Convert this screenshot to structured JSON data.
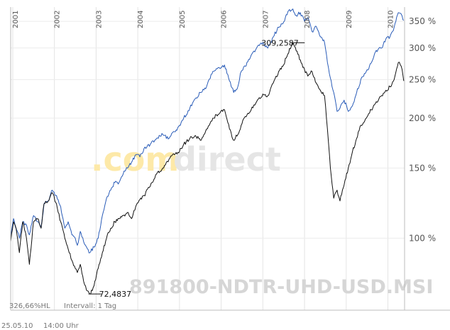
{
  "chart_data": {
    "type": "line",
    "title": "",
    "xlabel": "",
    "ylabel": "",
    "y_scale": "log",
    "y_unit": "%",
    "ylim": [
      66,
      380
    ],
    "x_ticks": [
      "2001",
      "2002",
      "2003",
      "2004",
      "2005",
      "2006",
      "2007",
      "2008",
      "2009",
      "2010"
    ],
    "y_ticks": [
      {
        "value": 100,
        "label": "100 %"
      },
      {
        "value": 150,
        "label": "150 %"
      },
      {
        "value": 200,
        "label": "200 %"
      },
      {
        "value": 250,
        "label": "250 %"
      },
      {
        "value": 300,
        "label": "300 %"
      },
      {
        "value": 350,
        "label": "350 %"
      }
    ],
    "grid": true,
    "watermark": {
      "part1": ".com",
      "part2": "direct"
    },
    "symbol": "891800-NDTR-UHD-USD.MSI",
    "annotations": [
      {
        "label": "309,2587",
        "x": 2007.85,
        "y": 309.2587
      },
      {
        "label": "72,4837",
        "x": 2002.97,
        "y": 72.4837
      }
    ],
    "footer": {
      "range": "326,66%HL",
      "interval": "Intervall: 1 Tag"
    },
    "bottom": {
      "date": "25.05.10",
      "time": "14:00 Uhr"
    },
    "series": [
      {
        "color": "#2a5cb8",
        "x": [
          2000.95,
          2001.02,
          2001.08,
          2001.16,
          2001.24,
          2001.33,
          2001.4,
          2001.5,
          2001.6,
          2001.68,
          2001.75,
          2001.85,
          2001.95,
          2002.05,
          2002.15,
          2002.25,
          2002.33,
          2002.42,
          2002.5,
          2002.55,
          2002.62,
          2002.7,
          2002.77,
          2002.85,
          2002.95,
          2003.05,
          2003.15,
          2003.25,
          2003.35,
          2003.45,
          2003.55,
          2003.65,
          2003.75,
          2003.85,
          2003.95,
          2004.05,
          2004.15,
          2004.3,
          2004.45,
          2004.6,
          2004.75,
          2004.88,
          2005.0,
          2005.1,
          2005.25,
          2005.4,
          2005.5,
          2005.65,
          2005.8,
          2005.95,
          2006.08,
          2006.2,
          2006.3,
          2006.4,
          2006.48,
          2006.58,
          2006.72,
          2006.85,
          2007.0,
          2007.12,
          2007.25,
          2007.38,
          2007.48,
          2007.6,
          2007.72,
          2007.8,
          2007.9,
          2008.0,
          2008.08,
          2008.18,
          2008.28,
          2008.38,
          2008.48,
          2008.55,
          2008.62,
          2008.7,
          2008.78,
          2008.85,
          2008.95,
          2009.05,
          2009.15,
          2009.25,
          2009.35,
          2009.48,
          2009.6,
          2009.72,
          2009.85,
          2009.95,
          2010.05,
          2010.15,
          2010.25,
          2010.32,
          2010.38
        ],
        "y": [
          100,
          112,
          106,
          100,
          110,
          108,
          102,
          114,
          110,
          106,
          122,
          124,
          132,
          128,
          120,
          106,
          110,
          102,
          100,
          96,
          104,
          98,
          95,
          92,
          95,
          100,
          114,
          126,
          132,
          138,
          138,
          145,
          150,
          155,
          162,
          160,
          168,
          172,
          178,
          182,
          178,
          185,
          192,
          200,
          212,
          225,
          232,
          240,
          262,
          268,
          272,
          248,
          232,
          240,
          262,
          270,
          288,
          300,
          310,
          300,
          320,
          338,
          345,
          370,
          376,
          362,
          368,
          350,
          358,
          330,
          340,
          320,
          310,
          276,
          252,
          232,
          208,
          212,
          222,
          208,
          215,
          232,
          250,
          262,
          275,
          296,
          300,
          316,
          320,
          338,
          368,
          365,
          352
        ]
      },
      {
        "color": "#111111",
        "x": [
          2000.95,
          2001.02,
          2001.08,
          2001.16,
          2001.24,
          2001.33,
          2001.4,
          2001.5,
          2001.6,
          2001.68,
          2001.75,
          2001.85,
          2001.95,
          2002.05,
          2002.15,
          2002.25,
          2002.33,
          2002.42,
          2002.5,
          2002.55,
          2002.62,
          2002.7,
          2002.77,
          2002.85,
          2002.95,
          2003.05,
          2003.15,
          2003.25,
          2003.35,
          2003.45,
          2003.55,
          2003.65,
          2003.75,
          2003.85,
          2003.95,
          2004.05,
          2004.15,
          2004.3,
          2004.45,
          2004.6,
          2004.75,
          2004.88,
          2005.0,
          2005.1,
          2005.25,
          2005.4,
          2005.5,
          2005.65,
          2005.8,
          2005.95,
          2006.08,
          2006.2,
          2006.3,
          2006.4,
          2006.48,
          2006.58,
          2006.72,
          2006.85,
          2007.0,
          2007.12,
          2007.25,
          2007.38,
          2007.48,
          2007.6,
          2007.72,
          2007.8,
          2007.9,
          2008.0,
          2008.08,
          2008.18,
          2008.28,
          2008.38,
          2008.48,
          2008.55,
          2008.62,
          2008.7,
          2008.78,
          2008.85,
          2008.95,
          2009.05,
          2009.15,
          2009.25,
          2009.35,
          2009.48,
          2009.6,
          2009.72,
          2009.85,
          2009.95,
          2010.05,
          2010.15,
          2010.25,
          2010.32,
          2010.38
        ],
        "y": [
          98,
          110,
          106,
          92,
          110,
          100,
          86,
          110,
          112,
          106,
          122,
          124,
          130,
          122,
          110,
          100,
          94,
          88,
          84,
          82,
          86,
          78,
          74,
          72.48,
          76,
          84,
          92,
          100,
          106,
          110,
          112,
          114,
          116,
          112,
          120,
          125,
          128,
          135,
          145,
          150,
          158,
          162,
          165,
          172,
          178,
          180,
          176,
          188,
          200,
          205,
          210,
          188,
          176,
          182,
          192,
          202,
          210,
          220,
          230,
          228,
          245,
          262,
          270,
          290,
          309.26,
          295,
          280,
          265,
          255,
          262,
          245,
          235,
          228,
          188,
          150,
          126,
          132,
          124,
          136,
          150,
          165,
          178,
          192,
          200,
          210,
          220,
          228,
          235,
          240,
          250,
          276,
          270,
          248
        ]
      }
    ]
  }
}
